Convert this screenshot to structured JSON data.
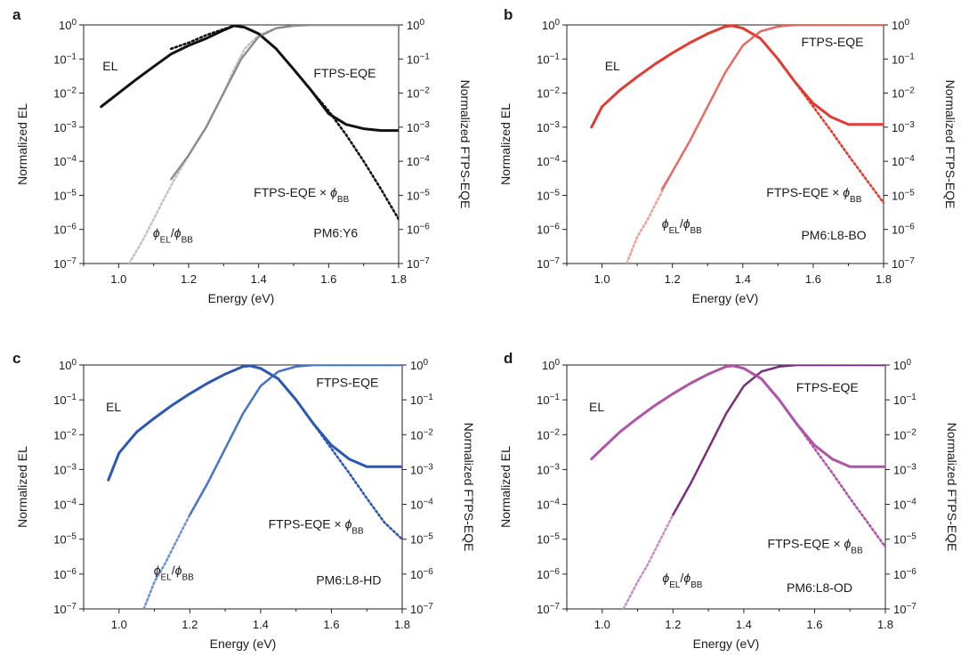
{
  "figure": {
    "panels": [
      {
        "letter": "a",
        "material": "PM6:Y6",
        "color": "#111111",
        "color_light": "#c4c4c4",
        "color_mid": "#8c8c8c"
      },
      {
        "letter": "b",
        "material": "PM6:L8-BO",
        "color": "#e23b32",
        "color_light": "#f0a29c",
        "color_mid": "#e86b63"
      },
      {
        "letter": "c",
        "material": "PM6:L8-HD",
        "color": "#2b58b3",
        "color_light": "#6e93d9",
        "color_mid": "#4a74c7"
      },
      {
        "letter": "d",
        "material": "PM6:L8-OD",
        "color": "#b054a8",
        "color_light": "#cf8dc9",
        "color_mid": "#7a2f7a"
      }
    ],
    "common": {
      "xlabel": "Energy (eV)",
      "ylabel_left": "Normalized EL",
      "ylabel_right": "Normalized FTPS-EQE",
      "label_el": "EL",
      "label_eqe": "FTPS-EQE",
      "label_eqe_bb_main": "FTPS-EQE × ",
      "label_phi": "ϕ",
      "sub_bb": "BB",
      "sub_el": "EL",
      "slash": "/",
      "xtick_labels": [
        "1.0",
        "1.2",
        "1.4",
        "1.6",
        "1.8"
      ],
      "ytick_bases": [
        "10",
        "10",
        "10",
        "10",
        "10",
        "10",
        "10",
        "10"
      ],
      "ytick_exps": [
        "0",
        "−1",
        "−2",
        "−3",
        "−4",
        "−5",
        "−6",
        "−7"
      ]
    }
  },
  "chart_data": [
    {
      "type": "line",
      "title": "a",
      "annotation": "PM6:Y6",
      "xlabel": "Energy (eV)",
      "ylabel": "Normalized EL",
      "ylabel_right": "Normalized FTPS-EQE",
      "xlim": [
        0.9,
        1.8
      ],
      "ylim": [
        1e-07,
        1
      ],
      "yscale": "log",
      "series": [
        {
          "name": "EL",
          "style": "solid",
          "x": [
            0.95,
            1.0,
            1.05,
            1.1,
            1.15,
            1.2,
            1.25,
            1.3,
            1.33,
            1.36,
            1.4,
            1.45,
            1.5,
            1.55,
            1.6,
            1.65,
            1.7,
            1.75,
            1.8
          ],
          "y": [
            0.004,
            0.01,
            0.025,
            0.06,
            0.14,
            0.25,
            0.4,
            0.7,
            0.95,
            0.85,
            0.55,
            0.2,
            0.05,
            0.012,
            0.0025,
            0.0012,
            0.0009,
            0.0008,
            0.0008
          ]
        },
        {
          "name": "phi_EL/phi_BB",
          "style": "dotted",
          "x": [
            1.03,
            1.07,
            1.1,
            1.13,
            1.16,
            1.2,
            1.25,
            1.3,
            1.33,
            1.36,
            1.4,
            1.45,
            1.5,
            1.55,
            1.6,
            1.65,
            1.7,
            1.75,
            1.8
          ],
          "y": [
            1e-07,
            5e-07,
            2e-06,
            8e-06,
            3e-05,
            0.00015,
            0.001,
            0.01,
            0.05,
            0.2,
            0.5,
            0.8,
            0.95,
            1,
            1,
            1,
            1,
            1,
            1
          ]
        },
        {
          "name": "FTPS-EQE",
          "style": "solid",
          "x": [
            1.15,
            1.2,
            1.25,
            1.3,
            1.35,
            1.4,
            1.45,
            1.5,
            1.55,
            1.6,
            1.65,
            1.7,
            1.75,
            1.8
          ],
          "y": [
            3e-05,
            0.00015,
            0.001,
            0.01,
            0.1,
            0.45,
            0.8,
            0.95,
            1,
            1,
            1,
            1,
            1,
            1
          ]
        },
        {
          "name": "FTPS-EQE × phi_BB",
          "style": "dotted",
          "x": [
            1.15,
            1.2,
            1.25,
            1.3,
            1.33,
            1.36,
            1.4,
            1.45,
            1.5,
            1.55,
            1.6,
            1.65,
            1.7,
            1.75,
            1.8
          ],
          "y": [
            0.2,
            0.3,
            0.5,
            0.75,
            0.95,
            0.85,
            0.55,
            0.2,
            0.05,
            0.012,
            0.003,
            0.0006,
            0.0001,
            1.5e-05,
            2e-06
          ]
        }
      ]
    },
    {
      "type": "line",
      "title": "b",
      "annotation": "PM6:L8-BO",
      "xlabel": "Energy (eV)",
      "ylabel": "Normalized EL",
      "ylabel_right": "Normalized FTPS-EQE",
      "xlim": [
        0.9,
        1.8
      ],
      "ylim": [
        1e-07,
        1
      ],
      "yscale": "log",
      "series": [
        {
          "name": "EL",
          "style": "solid",
          "x": [
            0.97,
            1.0,
            1.05,
            1.1,
            1.15,
            1.2,
            1.25,
            1.3,
            1.35,
            1.37,
            1.4,
            1.45,
            1.5,
            1.55,
            1.6,
            1.65,
            1.7,
            1.75,
            1.8
          ],
          "y": [
            0.001,
            0.004,
            0.012,
            0.03,
            0.07,
            0.15,
            0.3,
            0.55,
            0.9,
            0.95,
            0.8,
            0.4,
            0.1,
            0.02,
            0.005,
            0.002,
            0.0012,
            0.0012,
            0.0012
          ]
        },
        {
          "name": "phi_EL/phi_BB",
          "style": "dotted",
          "x": [
            1.07,
            1.1,
            1.13,
            1.16,
            1.2,
            1.25,
            1.3,
            1.35,
            1.4,
            1.45,
            1.5,
            1.55,
            1.6,
            1.65,
            1.7,
            1.75,
            1.8
          ],
          "y": [
            1e-07,
            6e-07,
            2e-06,
            8e-06,
            5e-05,
            0.0004,
            0.004,
            0.04,
            0.25,
            0.65,
            0.9,
            1,
            1,
            1,
            1,
            1,
            1
          ]
        },
        {
          "name": "FTPS-EQE",
          "style": "solid",
          "x": [
            1.17,
            1.2,
            1.25,
            1.3,
            1.35,
            1.4,
            1.45,
            1.5,
            1.55,
            1.6,
            1.65,
            1.7,
            1.75,
            1.8
          ],
          "y": [
            1.5e-05,
            5e-05,
            0.0004,
            0.004,
            0.04,
            0.25,
            0.65,
            0.9,
            1,
            1,
            1,
            1,
            1,
            1
          ]
        },
        {
          "name": "FTPS-EQE × phi_BB",
          "style": "dotted",
          "x": [
            1.2,
            1.25,
            1.3,
            1.35,
            1.37,
            1.4,
            1.45,
            1.5,
            1.55,
            1.6,
            1.65,
            1.7,
            1.75,
            1.8
          ],
          "y": [
            0.15,
            0.3,
            0.55,
            0.9,
            0.95,
            0.8,
            0.4,
            0.1,
            0.02,
            0.004,
            0.0008,
            0.00015,
            3e-05,
            6e-06
          ]
        }
      ]
    },
    {
      "type": "line",
      "title": "c",
      "annotation": "PM6:L8-HD",
      "xlabel": "Energy (eV)",
      "ylabel": "Normalized EL",
      "ylabel_right": "Normalized FTPS-EQE",
      "xlim": [
        0.9,
        1.8
      ],
      "ylim": [
        1e-07,
        1
      ],
      "yscale": "log",
      "series": [
        {
          "name": "EL",
          "style": "solid",
          "x": [
            0.97,
            1.0,
            1.05,
            1.1,
            1.15,
            1.2,
            1.25,
            1.3,
            1.35,
            1.37,
            1.4,
            1.45,
            1.5,
            1.55,
            1.6,
            1.65,
            1.7,
            1.75,
            1.8
          ],
          "y": [
            0.0005,
            0.003,
            0.012,
            0.03,
            0.07,
            0.15,
            0.3,
            0.55,
            0.9,
            0.95,
            0.8,
            0.4,
            0.1,
            0.02,
            0.005,
            0.002,
            0.0012,
            0.0012,
            0.0012
          ]
        },
        {
          "name": "phi_EL/phi_BB",
          "style": "dotted",
          "x": [
            1.07,
            1.1,
            1.13,
            1.16,
            1.2,
            1.25,
            1.3,
            1.35,
            1.4,
            1.45,
            1.5,
            1.55,
            1.6,
            1.65,
            1.7,
            1.75,
            1.8
          ],
          "y": [
            1e-07,
            6e-07,
            2e-06,
            8e-06,
            5e-05,
            0.0004,
            0.004,
            0.04,
            0.25,
            0.65,
            0.9,
            1,
            1,
            1,
            1,
            1,
            1
          ]
        },
        {
          "name": "FTPS-EQE",
          "style": "solid",
          "x": [
            1.2,
            1.25,
            1.3,
            1.35,
            1.4,
            1.45,
            1.5,
            1.55,
            1.6,
            1.65,
            1.7,
            1.75,
            1.8
          ],
          "y": [
            5e-05,
            0.0004,
            0.004,
            0.04,
            0.25,
            0.65,
            0.9,
            1,
            1,
            1,
            1,
            1,
            1
          ]
        },
        {
          "name": "FTPS-EQE × phi_BB",
          "style": "dotted",
          "x": [
            1.2,
            1.25,
            1.3,
            1.35,
            1.37,
            1.4,
            1.45,
            1.5,
            1.55,
            1.6,
            1.65,
            1.7,
            1.75,
            1.8
          ],
          "y": [
            0.15,
            0.3,
            0.55,
            0.9,
            0.95,
            0.8,
            0.4,
            0.1,
            0.02,
            0.004,
            0.0008,
            0.00015,
            3e-05,
            1e-05
          ]
        }
      ]
    },
    {
      "type": "line",
      "title": "d",
      "annotation": "PM6:L8-OD",
      "xlabel": "Energy (eV)",
      "ylabel": "Normalized EL",
      "ylabel_right": "Normalized FTPS-EQE",
      "xlim": [
        0.9,
        1.8
      ],
      "ylim": [
        1e-07,
        1
      ],
      "yscale": "log",
      "series": [
        {
          "name": "EL",
          "style": "solid",
          "x": [
            0.97,
            1.0,
            1.05,
            1.1,
            1.15,
            1.2,
            1.25,
            1.3,
            1.35,
            1.37,
            1.4,
            1.45,
            1.5,
            1.55,
            1.6,
            1.65,
            1.7,
            1.75,
            1.8
          ],
          "y": [
            0.002,
            0.004,
            0.012,
            0.03,
            0.07,
            0.15,
            0.3,
            0.55,
            0.9,
            0.95,
            0.8,
            0.4,
            0.1,
            0.02,
            0.005,
            0.002,
            0.0012,
            0.0012,
            0.0012
          ]
        },
        {
          "name": "phi_EL/phi_BB",
          "style": "dotted",
          "x": [
            1.06,
            1.1,
            1.13,
            1.16,
            1.2,
            1.25,
            1.3,
            1.35,
            1.4,
            1.45,
            1.5,
            1.55,
            1.6,
            1.65,
            1.7,
            1.75,
            1.8
          ],
          "y": [
            1e-07,
            6e-07,
            2e-06,
            8e-06,
            5e-05,
            0.0004,
            0.004,
            0.04,
            0.25,
            0.65,
            0.9,
            1,
            1,
            1,
            1,
            1,
            1
          ]
        },
        {
          "name": "FTPS-EQE",
          "style": "solid",
          "x": [
            1.2,
            1.25,
            1.3,
            1.35,
            1.4,
            1.45,
            1.5,
            1.55,
            1.6,
            1.65,
            1.7,
            1.75,
            1.8
          ],
          "y": [
            5e-05,
            0.0004,
            0.004,
            0.04,
            0.25,
            0.65,
            0.9,
            1,
            1,
            1,
            1,
            1,
            1
          ]
        },
        {
          "name": "FTPS-EQE × phi_BB",
          "style": "dotted",
          "x": [
            1.2,
            1.25,
            1.3,
            1.35,
            1.37,
            1.4,
            1.45,
            1.5,
            1.55,
            1.6,
            1.65,
            1.7,
            1.75,
            1.8
          ],
          "y": [
            0.15,
            0.3,
            0.55,
            0.9,
            0.95,
            0.8,
            0.4,
            0.1,
            0.02,
            0.004,
            0.0008,
            0.00015,
            3e-05,
            6e-06
          ]
        }
      ]
    }
  ]
}
